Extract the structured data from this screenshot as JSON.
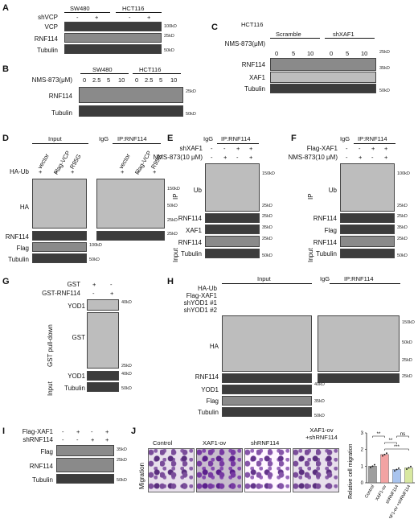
{
  "panels": {
    "A": {
      "letter": "A",
      "groups": [
        "SW480",
        "HCT116"
      ],
      "row_shvcp": "shVCP",
      "row_labels": [
        "VCP",
        "RNF114",
        "Tubulin"
      ],
      "signs": [
        "-",
        "+",
        "-",
        "+"
      ],
      "kd": [
        "100kD",
        "25kD",
        "50kD"
      ]
    },
    "B": {
      "letter": "B",
      "groups": [
        "SW480",
        "HCT116"
      ],
      "dose_label": "NMS-873(μM)",
      "doses": [
        "0",
        "2.5",
        "5",
        "10",
        "0",
        "2.5",
        "5",
        "10"
      ],
      "row_labels": [
        "RNF114",
        "Tubulin"
      ],
      "kd": [
        "25kD",
        "50kD"
      ]
    },
    "C": {
      "letter": "C",
      "cell": "HCT116",
      "groups": [
        "Scramble",
        "shXAF1"
      ],
      "dose_label": "NMS-873(μM)",
      "doses": [
        "0",
        "5",
        "10",
        "0",
        "5",
        "10"
      ],
      "row_labels": [
        "RNF114",
        "XAF1",
        "Tubulin"
      ],
      "kd": [
        "25kD",
        "35kD",
        "50kD"
      ]
    },
    "D": {
      "letter": "D",
      "input": "Input",
      "ip": "IP:RNF114",
      "igg": "IgG",
      "cols": [
        "vector",
        "Flag-VCP",
        "R95G",
        "vector",
        "Flag-VCP",
        "R95G"
      ],
      "haub": "HA-Ub",
      "signs": [
        "+",
        "+",
        "+",
        "+",
        "+",
        "+"
      ],
      "row_labels": [
        "HA",
        "RNF114",
        "Flag",
        "Tubulin"
      ],
      "kd": [
        "150kD",
        "50kD",
        "25kD",
        "25kD",
        "100kD",
        "50kD"
      ]
    },
    "E": {
      "letter": "E",
      "igg": "IgG",
      "ip": "IP:RNF114",
      "rows": [
        "shXAF1",
        "NMS-873(10 μM)"
      ],
      "signs1": [
        "-",
        "-",
        "+",
        "+"
      ],
      "signs2": [
        "-",
        "+",
        "-",
        "+"
      ],
      "ip_side": "IP",
      "input_side": "Input",
      "row_labels": [
        "Ub",
        "RNF114",
        "XAF1",
        "RNF114",
        "Tubulin"
      ],
      "kd": [
        "150kD",
        "25kD",
        "25kD",
        "35kD",
        "25kD",
        "50kD"
      ]
    },
    "F": {
      "letter": "F",
      "igg": "IgG",
      "ip": "IP:RNF114",
      "rows": [
        "Flag-XAF1",
        "NMS-873(10 μM)"
      ],
      "signs1": [
        "-",
        "-",
        "+",
        "+"
      ],
      "signs2": [
        "-",
        "+",
        "-",
        "+"
      ],
      "ip_side": "IP",
      "input_side": "Input",
      "row_labels": [
        "Ub",
        "RNF114",
        "Flag",
        "RNF114",
        "Tubulin"
      ],
      "kd": [
        "100kD",
        "25kD",
        "25kD",
        "35kD",
        "25kD",
        "50kD"
      ]
    },
    "G": {
      "letter": "G",
      "rows": [
        "GST",
        "GST-RNF114"
      ],
      "signs1": [
        "+",
        "-"
      ],
      "signs2": [
        "-",
        "+"
      ],
      "pulldown": "GST pull-down",
      "input_side": "Input",
      "row_labels": [
        "YOD1",
        "GST",
        "YOD1",
        "Tubulin"
      ],
      "kd": [
        "40kD",
        "25kD",
        "40kD",
        "50kD"
      ]
    },
    "H": {
      "letter": "H",
      "input": "Input",
      "ip": "IP:RNF114",
      "igg": "IgG",
      "rows": [
        "HA-Ub",
        "Flag-XAF1",
        "shYOD1 #1",
        "shYOD1 #2"
      ],
      "row_labels": [
        "HA",
        "RNF114",
        "YOD1",
        "Flag",
        "Tubulin"
      ],
      "kd": [
        "150kD",
        "50kD",
        "25kD",
        "25kD",
        "40kD",
        "35kD",
        "50kD"
      ]
    },
    "I": {
      "letter": "I",
      "rows": [
        "Flag-XAF1",
        "shRNF114"
      ],
      "signs1": [
        "-",
        "+",
        "-",
        "+"
      ],
      "signs2": [
        "-",
        "-",
        "+",
        "+"
      ],
      "row_labels": [
        "Flag",
        "RNF114",
        "Tubulin"
      ],
      "kd": [
        "35kD",
        "25kD",
        "50kD"
      ]
    },
    "J": {
      "letter": "J",
      "images": [
        "Control",
        "XAF1-ov",
        "shRNF114",
        "XAF1-ov\n+shRNF114"
      ],
      "side": "Migration",
      "ylabel": "Relative cell migration",
      "yticks": [
        "0",
        "1",
        "2",
        "3"
      ],
      "sig": [
        "**",
        "**",
        "***",
        "ns"
      ]
    }
  },
  "chart_data": {
    "type": "bar",
    "categories": [
      "Control",
      "XAF1-ov",
      "shRNF114",
      "XAF1-ov +shRNF114"
    ],
    "values": [
      1.0,
      1.7,
      0.8,
      0.9
    ],
    "ylabel": "Relative cell migration",
    "ylim": [
      0,
      3
    ],
    "colors": [
      "#9e9e9e",
      "#f2a3a3",
      "#a9c4ee",
      "#d8e8a0"
    ]
  }
}
